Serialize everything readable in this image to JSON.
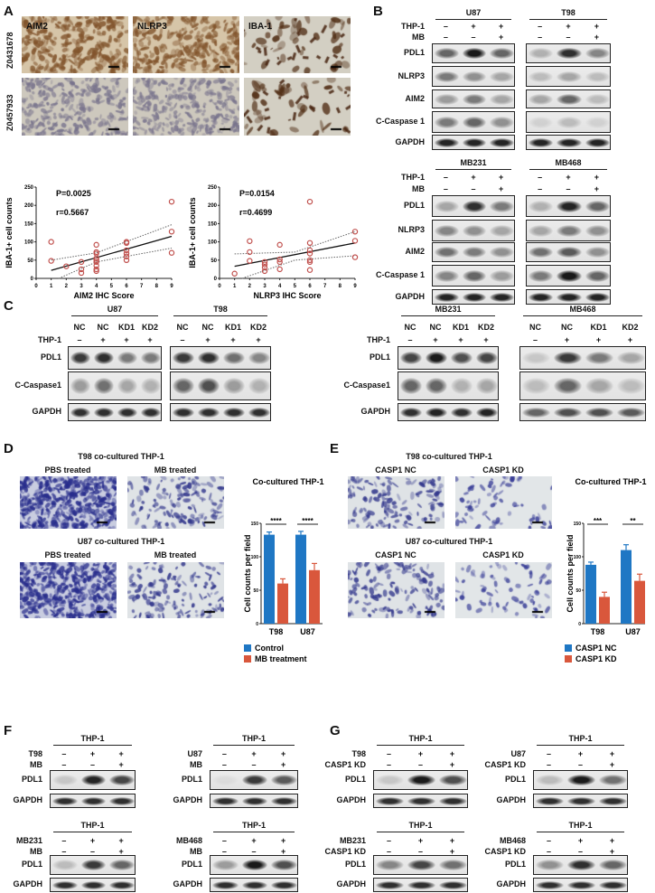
{
  "panel_labels": [
    "A",
    "B",
    "C",
    "D",
    "E",
    "F",
    "G"
  ],
  "A": {
    "stains": [
      "AIM2",
      "NLRP3",
      "IBA-1"
    ],
    "samples": [
      "Z0431678",
      "Z0457933"
    ]
  },
  "chart_data": [
    {
      "type": "scatter",
      "id": "A-left",
      "p_text": "P=0.0025",
      "r_text": "r=0.5667",
      "xlabel": "AIM2 IHC Score",
      "ylabel": "IBA-1+ cell counts",
      "xlim": [
        0,
        9
      ],
      "ylim": [
        0,
        250
      ],
      "xticks": [
        0,
        1,
        2,
        3,
        4,
        5,
        6,
        7,
        8,
        9
      ],
      "yticks": [
        0,
        50,
        100,
        150,
        200,
        250
      ],
      "points": [
        [
          1,
          100
        ],
        [
          1,
          48
        ],
        [
          2,
          33
        ],
        [
          3,
          45
        ],
        [
          3,
          25
        ],
        [
          3,
          15
        ],
        [
          4,
          92
        ],
        [
          4,
          72
        ],
        [
          4,
          68
        ],
        [
          4,
          55
        ],
        [
          4,
          50
        ],
        [
          4,
          45
        ],
        [
          4,
          35
        ],
        [
          4,
          25
        ],
        [
          4,
          20
        ],
        [
          6,
          100
        ],
        [
          6,
          97
        ],
        [
          6,
          77
        ],
        [
          6,
          68
        ],
        [
          6,
          60
        ],
        [
          6,
          50
        ],
        [
          9,
          210
        ],
        [
          9,
          128
        ],
        [
          9,
          70
        ]
      ],
      "fit": [
        [
          1,
          22
        ],
        [
          9,
          115
        ]
      ],
      "ci_upper": [
        [
          1,
          50
        ],
        [
          4,
          70
        ],
        [
          9,
          147
        ]
      ],
      "ci_lower": [
        [
          1.5,
          0
        ],
        [
          4,
          45
        ],
        [
          9,
          83
        ]
      ]
    },
    {
      "type": "scatter",
      "id": "A-right",
      "p_text": "P=0.0154",
      "r_text": "r=0.4699",
      "xlabel": "NLRP3 IHC Score",
      "ylabel": "IBA-1+ cell counts",
      "xlim": [
        0,
        9
      ],
      "ylim": [
        0,
        250
      ],
      "xticks": [
        0,
        1,
        2,
        3,
        4,
        5,
        6,
        7,
        8,
        9
      ],
      "yticks": [
        0,
        50,
        100,
        150,
        200,
        250
      ],
      "points": [
        [
          1,
          13
        ],
        [
          2,
          102
        ],
        [
          2,
          72
        ],
        [
          2,
          48
        ],
        [
          3,
          45
        ],
        [
          3,
          38
        ],
        [
          3,
          30
        ],
        [
          3,
          20
        ],
        [
          4,
          92
        ],
        [
          4,
          52
        ],
        [
          4,
          45
        ],
        [
          4,
          25
        ],
        [
          6,
          210
        ],
        [
          6,
          97
        ],
        [
          6,
          77
        ],
        [
          6,
          68
        ],
        [
          6,
          50
        ],
        [
          6,
          45
        ],
        [
          6,
          23
        ],
        [
          9,
          128
        ],
        [
          9,
          103
        ],
        [
          9,
          58
        ]
      ],
      "fit": [
        [
          1,
          33
        ],
        [
          9,
          97
        ]
      ],
      "ci_upper": [
        [
          1,
          67
        ],
        [
          5,
          72
        ],
        [
          9,
          128
        ]
      ],
      "ci_lower": [
        [
          1.5,
          0
        ],
        [
          5,
          50
        ],
        [
          9,
          62
        ]
      ]
    },
    {
      "type": "bar",
      "id": "D-chart",
      "title": "Co-cultured THP-1",
      "ylabel": "Cell counts per field",
      "categories": [
        "T98",
        "U87"
      ],
      "ylim": [
        0,
        150
      ],
      "yticks": [
        0,
        50,
        100,
        150
      ],
      "series": [
        {
          "name": "Control",
          "color": "#1f77c4",
          "values": [
            133,
            133
          ],
          "errors": [
            4,
            5
          ]
        },
        {
          "name": "MB treatment",
          "color": "#d9573c",
          "values": [
            60,
            80
          ],
          "errors": [
            7,
            10
          ]
        }
      ],
      "significance": [
        "****",
        "****"
      ]
    },
    {
      "type": "bar",
      "id": "E-chart",
      "title": "Co-cultured THP-1",
      "ylabel": "Cell counts per field",
      "categories": [
        "T98",
        "U87"
      ],
      "ylim": [
        0,
        150
      ],
      "yticks": [
        0,
        50,
        100,
        150
      ],
      "series": [
        {
          "name": "CASP1 NC",
          "color": "#1f77c4",
          "values": [
            88,
            110
          ],
          "errors": [
            4,
            8
          ]
        },
        {
          "name": "CASP1 KD",
          "color": "#d9573c",
          "values": [
            40,
            64
          ],
          "errors": [
            7,
            10
          ]
        }
      ],
      "significance": [
        "***",
        "**"
      ]
    }
  ],
  "D": {
    "top_header": "T98 co-cultured THP-1",
    "bottom_header": "U87 co-cultured THP-1",
    "conditions": [
      "PBS treated",
      "MB treated"
    ]
  },
  "E": {
    "top_header": "T98 co-cultured THP-1",
    "bottom_header": "U87 co-cultured THP-1",
    "conditions": [
      "CASP1 NC",
      "CASP1 KD"
    ]
  },
  "blot_groups": {
    "B1": {
      "cond_labels": [
        "THP-1",
        "MB"
      ],
      "band_labels": [
        "PDL1",
        "NLRP3",
        "AIM2",
        "C-Caspase 1",
        "GAPDH"
      ],
      "blots": [
        {
          "header": "U87",
          "conds": [
            [
              "–",
              "+",
              "+"
            ],
            [
              "–",
              "–",
              "+"
            ]
          ],
          "bands": [
            [
              0.6,
              0.95,
              0.6
            ],
            [
              0.5,
              0.4,
              0.3
            ],
            [
              0.35,
              0.5,
              0.3
            ],
            [
              0.5,
              0.6,
              0.4
            ],
            [
              0.9,
              0.9,
              0.9
            ]
          ]
        },
        {
          "header": "T98",
          "conds": [
            [
              "–",
              "+",
              "+"
            ],
            [
              "–",
              "–",
              "+"
            ]
          ],
          "bands": [
            [
              0.25,
              0.85,
              0.45
            ],
            [
              0.2,
              0.3,
              0.2
            ],
            [
              0.3,
              0.6,
              0.2
            ],
            [
              0.1,
              0.2,
              0.1
            ],
            [
              0.9,
              0.9,
              0.9
            ]
          ]
        }
      ]
    },
    "B2": {
      "cond_labels": [
        "THP-1",
        "MB"
      ],
      "band_labels": [
        "PDL1",
        "NLRP3",
        "AIM2",
        "C-Caspase 1",
        "GAPDH"
      ],
      "blots": [
        {
          "header": "MB231",
          "conds": [
            [
              "–",
              "+",
              "+"
            ],
            [
              "–",
              "–",
              "+"
            ]
          ],
          "bands": [
            [
              0.3,
              0.85,
              0.5
            ],
            [
              0.45,
              0.4,
              0.3
            ],
            [
              0.55,
              0.5,
              0.4
            ],
            [
              0.45,
              0.6,
              0.35
            ],
            [
              0.9,
              0.9,
              0.9
            ]
          ]
        },
        {
          "header": "MB468",
          "conds": [
            [
              "–",
              "+",
              "+"
            ],
            [
              "–",
              "–",
              "+"
            ]
          ],
          "bands": [
            [
              0.25,
              0.9,
              0.6
            ],
            [
              0.3,
              0.5,
              0.4
            ],
            [
              0.55,
              0.65,
              0.4
            ],
            [
              0.5,
              0.95,
              0.6
            ],
            [
              0.9,
              0.9,
              0.9
            ]
          ]
        }
      ]
    },
    "C1": {
      "cond_labels": [
        "",
        "THP-1"
      ],
      "band_labels": [
        "PDL1",
        "C-Caspase1",
        "GAPDH"
      ],
      "blots": [
        {
          "header": "U87",
          "conds": [
            [
              "NC",
              "NC",
              "KD1",
              "KD2"
            ],
            [
              "–",
              "+",
              "+",
              "+"
            ]
          ],
          "bands": [
            [
              0.8,
              0.85,
              0.5,
              0.5
            ],
            [
              0.35,
              0.55,
              0.3,
              0.25
            ],
            [
              0.85,
              0.85,
              0.85,
              0.85
            ]
          ]
        },
        {
          "header": "T98",
          "conds": [
            [
              "NC",
              "NC",
              "KD1",
              "KD2"
            ],
            [
              "–",
              "+",
              "+",
              "+"
            ]
          ],
          "bands": [
            [
              0.8,
              0.85,
              0.55,
              0.45
            ],
            [
              0.6,
              0.7,
              0.35,
              0.25
            ],
            [
              0.85,
              0.85,
              0.85,
              0.85
            ]
          ]
        }
      ]
    },
    "C2": {
      "cond_labels": [
        "",
        "THP-1"
      ],
      "band_labels": [
        "PDL1",
        "C-Caspase1",
        "GAPDH"
      ],
      "blots": [
        {
          "header": "MB231",
          "conds": [
            [
              "NC",
              "NC",
              "KD1",
              "KD2"
            ],
            [
              "–",
              "+",
              "+",
              "+"
            ]
          ],
          "bands": [
            [
              0.75,
              0.95,
              0.7,
              0.75
            ],
            [
              0.6,
              0.6,
              0.25,
              0.3
            ],
            [
              0.85,
              0.9,
              0.85,
              0.9
            ]
          ]
        },
        {
          "header": "MB468",
          "conds": [
            [
              "NC",
              "NC",
              "KD1",
              "KD2"
            ],
            [
              "–",
              "+",
              "+",
              "+"
            ]
          ],
          "bands": [
            [
              0.15,
              0.8,
              0.5,
              0.3
            ],
            [
              0.2,
              0.6,
              0.3,
              0.2
            ],
            [
              0.6,
              0.7,
              0.7,
              0.65
            ]
          ]
        }
      ]
    },
    "F1": {
      "cond_labels": [
        "T98",
        "MB"
      ],
      "band_labels": [
        "PDL1",
        "GAPDH"
      ],
      "blots": [
        {
          "header": "THP-1",
          "conds": [
            [
              "–",
              "+",
              "+"
            ],
            [
              "–",
              "–",
              "+"
            ]
          ],
          "bands": [
            [
              0.15,
              0.9,
              0.75
            ],
            [
              0.85,
              0.85,
              0.85
            ]
          ]
        }
      ]
    },
    "F2": {
      "cond_labels": [
        "U87",
        "MB"
      ],
      "band_labels": [
        "PDL1",
        "GAPDH"
      ],
      "blots": [
        {
          "header": "THP-1",
          "conds": [
            [
              "–",
              "+",
              "+"
            ],
            [
              "–",
              "–",
              "+"
            ]
          ],
          "bands": [
            [
              0.05,
              0.8,
              0.65
            ],
            [
              0.85,
              0.85,
              0.85
            ]
          ]
        }
      ]
    },
    "F3": {
      "cond_labels": [
        "MB231",
        "MB"
      ],
      "band_labels": [
        "PDL1",
        "GAPDH"
      ],
      "blots": [
        {
          "header": "THP-1",
          "conds": [
            [
              "–",
              "+",
              "+"
            ],
            [
              "–",
              "–",
              "+"
            ]
          ],
          "bands": [
            [
              0.2,
              0.8,
              0.6
            ],
            [
              0.85,
              0.85,
              0.85
            ]
          ]
        }
      ]
    },
    "F4": {
      "cond_labels": [
        "MB468",
        "MB"
      ],
      "band_labels": [
        "PDL1",
        "GAPDH"
      ],
      "blots": [
        {
          "header": "THP-1",
          "conds": [
            [
              "–",
              "+",
              "+"
            ],
            [
              "–",
              "–",
              "+"
            ]
          ],
          "bands": [
            [
              0.35,
              0.95,
              0.7
            ],
            [
              0.85,
              0.85,
              0.85
            ]
          ]
        }
      ]
    },
    "G1": {
      "cond_labels": [
        "T98",
        "CASP1 KD"
      ],
      "band_labels": [
        "PDL1",
        "GAPDH"
      ],
      "blots": [
        {
          "header": "THP-1",
          "conds": [
            [
              "–",
              "+",
              "+"
            ],
            [
              "–",
              "–",
              "+"
            ]
          ],
          "bands": [
            [
              0.15,
              0.95,
              0.7
            ],
            [
              0.85,
              0.85,
              0.85
            ]
          ]
        }
      ]
    },
    "G2": {
      "cond_labels": [
        "U87",
        "CASP1 KD"
      ],
      "band_labels": [
        "PDL1",
        "GAPDH"
      ],
      "blots": [
        {
          "header": "THP-1",
          "conds": [
            [
              "–",
              "+",
              "+"
            ],
            [
              "–",
              "–",
              "+"
            ]
          ],
          "bands": [
            [
              0.2,
              0.95,
              0.55
            ],
            [
              0.85,
              0.85,
              0.85
            ]
          ]
        }
      ]
    },
    "G3": {
      "cond_labels": [
        "MB231",
        "CASP1 KD"
      ],
      "band_labels": [
        "PDL1",
        "GAPDH"
      ],
      "blots": [
        {
          "header": "THP-1",
          "conds": [
            [
              "–",
              "+",
              "+"
            ],
            [
              "–",
              "–",
              "+"
            ]
          ],
          "bands": [
            [
              0.45,
              0.75,
              0.55
            ],
            [
              0.85,
              0.85,
              0.85
            ]
          ]
        }
      ]
    },
    "G4": {
      "cond_labels": [
        "MB468",
        "CASP1 KD"
      ],
      "band_labels": [
        "PDL1",
        "GAPDH"
      ],
      "blots": [
        {
          "header": "THP-1",
          "conds": [
            [
              "–",
              "+",
              "+"
            ],
            [
              "–",
              "–",
              "+"
            ]
          ],
          "bands": [
            [
              0.4,
              0.85,
              0.6
            ],
            [
              0.85,
              0.85,
              0.85
            ]
          ]
        }
      ]
    }
  }
}
